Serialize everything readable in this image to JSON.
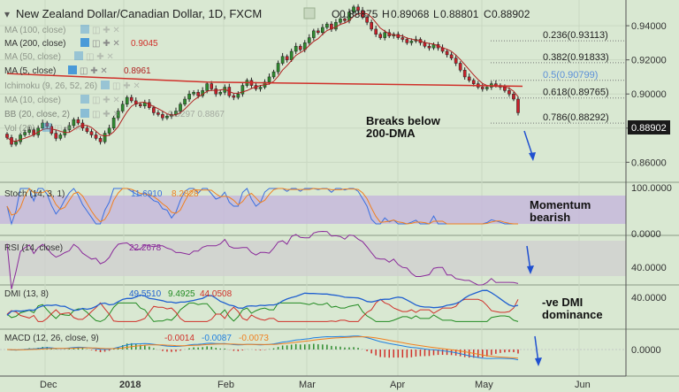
{
  "header": {
    "title": "New Zealand Dollar/Canadian Dollar, 1D, FXCM",
    "ohlc": [
      {
        "label": "O",
        "value": "0.88875"
      },
      {
        "label": "H",
        "value": "0.89068"
      },
      {
        "label": "L",
        "value": "0.88801"
      },
      {
        "label": "C",
        "value": "0.88902"
      }
    ]
  },
  "legend": [
    {
      "text": "MA (100, close)",
      "value": "",
      "value_color": "#d0302a"
    },
    {
      "text": "MA (200, close)",
      "value": "0.9045",
      "value_color": "#d0302a"
    },
    {
      "text": "MA (50, close)",
      "value": "",
      "value_color": "#d0302a"
    },
    {
      "text": "MA (5, close)",
      "value": "0.8961",
      "value_color": "#b02020"
    },
    {
      "text": "Ichimoku (9, 26, 52, 26)",
      "value": "",
      "value_color": "#d0302a"
    },
    {
      "text": "MA (10, close)",
      "value": "",
      "value_color": "#d0302a"
    },
    {
      "text": "BB (20, close, 2)",
      "value": "0.9297   0.8867",
      "value_color": "#8a8a8a"
    },
    {
      "text": "Vol (20)",
      "value": "",
      "value_color": "#8a8a8a"
    }
  ],
  "price_axis": [
    "0.94000",
    "0.92000",
    "0.90000",
    "0.88000",
    "0.86000"
  ],
  "last_price": "0.88902",
  "fib_levels": [
    {
      "label": "0.236(0.93113)",
      "value": 0.93113,
      "color": "#222222"
    },
    {
      "label": "0.382(0.91833)",
      "value": 0.91833,
      "color": "#222222"
    },
    {
      "label": "0.5(0.90799)",
      "value": 0.90799,
      "color": "#5b8fd8"
    },
    {
      "label": "0.618(0.89765)",
      "value": 0.89765,
      "color": "#222222"
    },
    {
      "label": "0.786(0.88292)",
      "value": 0.88292,
      "color": "#222222"
    }
  ],
  "annotations": {
    "breaks": [
      "Breaks below",
      "200-DMA"
    ],
    "momentum": [
      "Momentum",
      "bearish"
    ],
    "dmi": [
      "-ve DMI",
      "dominance"
    ]
  },
  "panes": {
    "stoch": {
      "label": "Stoch (14, 3, 1)",
      "v1": "11.6910",
      "v1_color": "#3a6fe0",
      "v2": "8.2828",
      "v2_color": "#f08020",
      "axis": [
        "100.0000",
        "0.0000"
      ]
    },
    "rsi": {
      "label": "RSI (14, close)",
      "v1": "22.2678",
      "v1_color": "#8a2a9a",
      "axis": [
        "40.0000"
      ]
    },
    "dmi": {
      "label": "DMI (13, 8)",
      "v1": "49.5510",
      "v1_color": "#2060d0",
      "v2": "9.4925",
      "v2_color": "#228b22",
      "v3": "44.0508",
      "v3_color": "#d0302a",
      "axis": [
        "40.0000"
      ]
    },
    "macd": {
      "label": "MACD (12, 26, close, 9)",
      "v1": "-0.0014",
      "v1_color": "#d0302a",
      "v2": "-0.0087",
      "v2_color": "#2080e0",
      "v3": "-0.0073",
      "v3_color": "#f08020",
      "axis": [
        "0.0000"
      ]
    }
  },
  "x_labels": [
    "Dec",
    "2018",
    "Feb",
    "Mar",
    "Apr",
    "May",
    "Jun"
  ],
  "chart_data": {
    "type": "candlestick",
    "symbol": "NZD/CAD",
    "interval": "1D",
    "x_range": [
      "2017-11-24",
      "2018-06-12"
    ],
    "price_range": [
      0.855,
      0.953
    ],
    "ohlc_close": [
      0.8745,
      0.8705,
      0.872,
      0.876,
      0.8775,
      0.879,
      0.876,
      0.88,
      0.883,
      0.881,
      0.877,
      0.874,
      0.876,
      0.879,
      0.8815,
      0.885,
      0.883,
      0.88,
      0.878,
      0.876,
      0.874,
      0.872,
      0.877,
      0.88,
      0.886,
      0.89,
      0.894,
      0.898,
      0.896,
      0.894,
      0.893,
      0.895,
      0.892,
      0.889,
      0.888,
      0.886,
      0.887,
      0.888,
      0.89,
      0.894,
      0.897,
      0.9,
      0.901,
      0.899,
      0.902,
      0.906,
      0.903,
      0.9,
      0.901,
      0.904,
      0.899,
      0.898,
      0.9,
      0.905,
      0.908,
      0.905,
      0.903,
      0.904,
      0.907,
      0.91,
      0.913,
      0.918,
      0.922,
      0.92,
      0.925,
      0.928,
      0.926,
      0.93,
      0.933,
      0.937,
      0.936,
      0.939,
      0.941,
      0.938,
      0.942,
      0.944,
      0.943,
      0.948,
      0.951,
      0.949,
      0.945,
      0.942,
      0.938,
      0.935,
      0.933,
      0.936,
      0.934,
      0.935,
      0.933,
      0.932,
      0.93,
      0.931,
      0.932,
      0.93,
      0.928,
      0.927,
      0.929,
      0.927,
      0.925,
      0.923,
      0.921,
      0.918,
      0.914,
      0.91,
      0.908,
      0.906,
      0.904,
      0.903,
      0.904,
      0.906,
      0.905,
      0.904,
      0.902,
      0.9,
      0.897,
      0.889
    ],
    "ma200": [
      [
        0,
        0.912
      ],
      [
        45,
        0.907
      ],
      [
        90,
        0.9055
      ],
      [
        116,
        0.9045
      ]
    ],
    "fibonacci": [
      {
        "ratio": 0.236,
        "price": 0.93113
      },
      {
        "ratio": 0.382,
        "price": 0.91833
      },
      {
        "ratio": 0.5,
        "price": 0.90799
      },
      {
        "ratio": 0.618,
        "price": 0.89765
      },
      {
        "ratio": 0.786,
        "price": 0.88292
      }
    ],
    "indicators": {
      "stoch_k": 11.691,
      "stoch_d": 8.2828,
      "rsi": 22.2678,
      "dmi_adx": 49.551,
      "dmi_plus": 9.4925,
      "dmi_minus": 44.0508,
      "macd": -0.0014,
      "macd_signal": -0.0087,
      "macd_hist": -0.0073
    }
  }
}
